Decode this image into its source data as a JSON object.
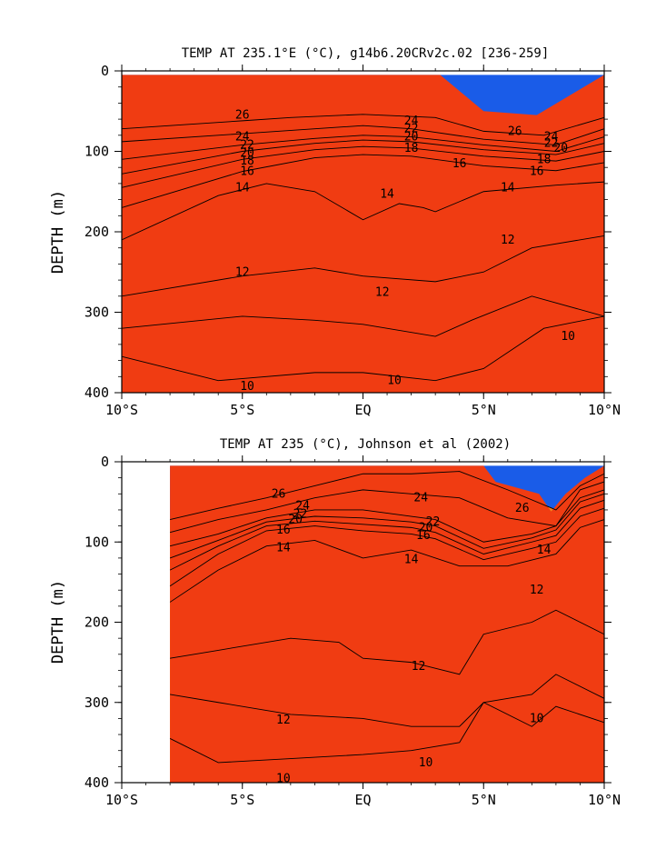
{
  "chart_data": [
    {
      "type": "heatmap",
      "title": "TEMP AT 235.1°E (°C), g14b6.20CRv2c.02 [236-259]",
      "ylabel": "DEPTH (m)",
      "xlim": [
        -10,
        10
      ],
      "ylim": [
        400,
        0
      ],
      "x_ticks": [
        {
          "v": -10,
          "label": "10°S"
        },
        {
          "v": -5,
          "label": "5°S"
        },
        {
          "v": 0,
          "label": "EQ"
        },
        {
          "v": 5,
          "label": "5°N"
        },
        {
          "v": 10,
          "label": "10°N"
        }
      ],
      "y_ticks": [
        {
          "v": 0,
          "label": "0"
        },
        {
          "v": 100,
          "label": "100"
        },
        {
          "v": 200,
          "label": "200"
        },
        {
          "v": 300,
          "label": "300"
        },
        {
          "v": 400,
          "label": "400"
        }
      ],
      "data_xrange": [
        -10,
        10
      ],
      "data_top": 5,
      "levels": [
        {
          "t": 28,
          "color": "#f03c12",
          "x": [
            -10,
            -5,
            0,
            3.2,
            5,
            7.2,
            10
          ],
          "y": [
            5,
            5,
            5,
            5,
            50,
            55,
            5
          ]
        },
        {
          "t": 26,
          "color": "#f5861b",
          "x": [
            -10,
            -5,
            -3,
            0,
            3,
            5,
            7.5,
            10
          ],
          "y": [
            72,
            62,
            58,
            54,
            58,
            75,
            80,
            58
          ]
        },
        {
          "t": 24,
          "color": "#f8a235",
          "x": [
            -10,
            -5,
            -2,
            0,
            2,
            5,
            8,
            10
          ],
          "y": [
            88,
            78,
            72,
            68,
            72,
            85,
            92,
            72
          ]
        },
        {
          "t": 22,
          "color": "#f7d230",
          "x": [
            -10,
            -5,
            -2,
            0,
            2,
            5,
            8,
            10
          ],
          "y": [
            110,
            92,
            84,
            80,
            82,
            92,
            100,
            82
          ]
        },
        {
          "t": 20,
          "color": "#fbfb52",
          "x": [
            -10,
            -5,
            -2,
            0,
            2,
            5,
            8,
            10
          ],
          "y": [
            128,
            100,
            90,
            86,
            88,
            98,
            104,
            90
          ]
        },
        {
          "t": 18,
          "color": "#b8e52b",
          "x": [
            -10,
            -5,
            -2,
            0,
            2,
            5,
            8,
            10
          ],
          "y": [
            145,
            110,
            98,
            94,
            96,
            106,
            112,
            100
          ]
        },
        {
          "t": 16,
          "color": "#2bd82a",
          "x": [
            -10,
            -5,
            -2,
            0,
            2,
            5,
            8,
            10
          ],
          "y": [
            170,
            125,
            108,
            104,
            106,
            118,
            124,
            114
          ]
        },
        {
          "t": 14,
          "color": "#2ff0b2",
          "x": [
            -10,
            -6,
            -4,
            -2,
            0,
            1.5,
            2.5,
            3,
            5,
            8,
            10
          ],
          "y": [
            210,
            155,
            140,
            150,
            185,
            165,
            170,
            175,
            150,
            142,
            138
          ]
        },
        {
          "t": 12.5,
          "color": "#35e2f2",
          "x": [
            -10,
            -5,
            -2,
            0,
            3,
            5,
            7,
            10
          ],
          "y": [
            280,
            255,
            245,
            255,
            262,
            250,
            220,
            205
          ]
        },
        {
          "t": 11,
          "color": "#15caf5",
          "x": [
            -10,
            -5,
            -2,
            0,
            3,
            4.5,
            7,
            10
          ],
          "y": [
            320,
            305,
            310,
            315,
            330,
            310,
            280,
            305
          ]
        },
        {
          "t": 10,
          "color": "#179ff2",
          "x": [
            -10,
            -6,
            -2,
            0,
            3,
            5,
            7.5,
            10
          ],
          "y": [
            355,
            385,
            375,
            375,
            385,
            370,
            320,
            305
          ]
        },
        {
          "t": 9,
          "color": "#1a5ce8",
          "x": [],
          "y": []
        }
      ],
      "contour_labels": [
        {
          "text": "26",
          "x": -5,
          "y": 55
        },
        {
          "text": "24",
          "x": -5,
          "y": 82
        },
        {
          "text": "22",
          "x": -4.8,
          "y": 92
        },
        {
          "text": "20",
          "x": -4.8,
          "y": 102
        },
        {
          "text": "18",
          "x": -4.8,
          "y": 112
        },
        {
          "text": "16",
          "x": -4.8,
          "y": 125
        },
        {
          "text": "14",
          "x": -5,
          "y": 145
        },
        {
          "text": "24",
          "x": 2,
          "y": 62
        },
        {
          "text": "22",
          "x": 2,
          "y": 72
        },
        {
          "text": "20",
          "x": 2,
          "y": 82
        },
        {
          "text": "18",
          "x": 2,
          "y": 96
        },
        {
          "text": "16",
          "x": 4,
          "y": 115
        },
        {
          "text": "14",
          "x": 1,
          "y": 153
        },
        {
          "text": "26",
          "x": 6.3,
          "y": 75
        },
        {
          "text": "24",
          "x": 7.8,
          "y": 82
        },
        {
          "text": "22",
          "x": 7.8,
          "y": 90
        },
        {
          "text": "20",
          "x": 8.2,
          "y": 96
        },
        {
          "text": "18",
          "x": 7.5,
          "y": 110
        },
        {
          "text": "16",
          "x": 7.2,
          "y": 125
        },
        {
          "text": "14",
          "x": 6,
          "y": 145
        },
        {
          "text": "12",
          "x": 6,
          "y": 210
        },
        {
          "text": "12",
          "x": -5,
          "y": 250
        },
        {
          "text": "12",
          "x": 0.8,
          "y": 275
        },
        {
          "text": "10",
          "x": 8.5,
          "y": 330
        },
        {
          "text": "10",
          "x": -4.8,
          "y": 392
        },
        {
          "text": "10",
          "x": 1.3,
          "y": 385
        }
      ]
    },
    {
      "type": "heatmap",
      "title": "TEMP AT 235 (°C), Johnson et al (2002)",
      "ylabel": "DEPTH (m)",
      "xlim": [
        -10,
        10
      ],
      "ylim": [
        400,
        0
      ],
      "x_ticks": [
        {
          "v": -10,
          "label": "10°S"
        },
        {
          "v": -5,
          "label": "5°S"
        },
        {
          "v": 0,
          "label": "EQ"
        },
        {
          "v": 5,
          "label": "5°N"
        },
        {
          "v": 10,
          "label": "10°N"
        }
      ],
      "y_ticks": [
        {
          "v": 0,
          "label": "0"
        },
        {
          "v": 100,
          "label": "100"
        },
        {
          "v": 200,
          "label": "200"
        },
        {
          "v": 300,
          "label": "300"
        },
        {
          "v": 400,
          "label": "400"
        }
      ],
      "data_xrange": [
        -8,
        10
      ],
      "data_top": 5,
      "levels": [
        {
          "t": 28,
          "color": "#f03c12",
          "x": [
            -8,
            0,
            5,
            5.5,
            7.3,
            7.8,
            8.4,
            9.2,
            10
          ],
          "y": [
            5,
            5,
            5,
            25,
            40,
            62,
            40,
            20,
            5
          ]
        },
        {
          "t": 26,
          "color": "#f5861b",
          "x": [
            -8,
            -6,
            -4,
            -2,
            0,
            2,
            4,
            6,
            8,
            9,
            10
          ],
          "y": [
            72,
            58,
            45,
            30,
            15,
            15,
            12,
            35,
            60,
            30,
            15
          ]
        },
        {
          "t": 24,
          "color": "#f8a235",
          "x": [
            -8,
            -6,
            -4,
            -2,
            0,
            2,
            4,
            6,
            8,
            9,
            10
          ],
          "y": [
            88,
            72,
            60,
            45,
            35,
            40,
            45,
            70,
            80,
            35,
            25
          ]
        },
        {
          "t": 22,
          "color": "#f7d230",
          "x": [
            -8,
            -6,
            -5,
            -4,
            -2,
            0,
            2,
            3,
            5,
            7,
            8,
            9,
            10
          ],
          "y": [
            105,
            90,
            80,
            70,
            60,
            60,
            68,
            72,
            100,
            90,
            80,
            45,
            35
          ]
        },
        {
          "t": 20,
          "color": "#fbfb52",
          "x": [
            -8,
            -6,
            -4,
            -2,
            0,
            2,
            3,
            5,
            7,
            8,
            9,
            10
          ],
          "y": [
            120,
            98,
            75,
            68,
            70,
            75,
            80,
            108,
            95,
            85,
            50,
            40
          ]
        },
        {
          "t": 18,
          "color": "#b8e52b",
          "x": [
            -8,
            -6,
            -4,
            -2,
            0,
            2,
            3,
            5,
            7,
            8,
            9,
            10
          ],
          "y": [
            135,
            105,
            80,
            74,
            78,
            82,
            88,
            115,
            100,
            92,
            58,
            48
          ]
        },
        {
          "t": 16,
          "color": "#2bd82a",
          "x": [
            -8,
            -6,
            -4,
            -2,
            0,
            2,
            3,
            5,
            7,
            8,
            9,
            10
          ],
          "y": [
            155,
            115,
            86,
            80,
            86,
            90,
            96,
            122,
            108,
            100,
            68,
            58
          ]
        },
        {
          "t": 14,
          "color": "#2ff0b2",
          "x": [
            -8,
            -6,
            -4,
            -2,
            0,
            2,
            4,
            6,
            8,
            9,
            10
          ],
          "y": [
            175,
            135,
            105,
            98,
            120,
            110,
            130,
            130,
            115,
            82,
            72
          ]
        },
        {
          "t": 12.5,
          "color": "#35e2f2",
          "x": [
            -8,
            -6,
            -3,
            -1,
            0,
            2,
            4,
            5,
            7,
            8,
            10
          ],
          "y": [
            245,
            235,
            220,
            225,
            245,
            250,
            265,
            215,
            200,
            185,
            215
          ]
        },
        {
          "t": 11,
          "color": "#15caf5",
          "x": [
            -8,
            -6,
            -3,
            0,
            2,
            4,
            5,
            7,
            8,
            10
          ],
          "y": [
            290,
            300,
            315,
            320,
            330,
            330,
            300,
            290,
            265,
            295
          ]
        },
        {
          "t": 10,
          "color": "#179ff2",
          "x": [
            -8,
            -6,
            -3,
            0,
            2,
            4,
            5,
            7,
            8,
            10
          ],
          "y": [
            345,
            375,
            370,
            365,
            360,
            350,
            300,
            330,
            305,
            325
          ]
        },
        {
          "t": 9,
          "color": "#1a5ce8",
          "x": [],
          "y": []
        }
      ],
      "contour_labels": [
        {
          "text": "26",
          "x": -3.5,
          "y": 40
        },
        {
          "text": "24",
          "x": -2.5,
          "y": 55
        },
        {
          "text": "22",
          "x": -2.6,
          "y": 65
        },
        {
          "text": "20",
          "x": -2.8,
          "y": 72
        },
        {
          "text": "16",
          "x": -3.3,
          "y": 85
        },
        {
          "text": "14",
          "x": -3.3,
          "y": 107
        },
        {
          "text": "24",
          "x": 2.4,
          "y": 45
        },
        {
          "text": "22",
          "x": 2.9,
          "y": 75
        },
        {
          "text": "20",
          "x": 2.6,
          "y": 82
        },
        {
          "text": "16",
          "x": 2.5,
          "y": 92
        },
        {
          "text": "14",
          "x": 2,
          "y": 122
        },
        {
          "text": "26",
          "x": 6.6,
          "y": 58
        },
        {
          "text": "14",
          "x": 7.5,
          "y": 110
        },
        {
          "text": "12",
          "x": 7.2,
          "y": 160
        },
        {
          "text": "12",
          "x": 2.3,
          "y": 255
        },
        {
          "text": "12",
          "x": -3.3,
          "y": 322
        },
        {
          "text": "10",
          "x": 7.2,
          "y": 320
        },
        {
          "text": "10",
          "x": 2.6,
          "y": 375
        },
        {
          "text": "10",
          "x": -3.3,
          "y": 395
        }
      ]
    }
  ]
}
